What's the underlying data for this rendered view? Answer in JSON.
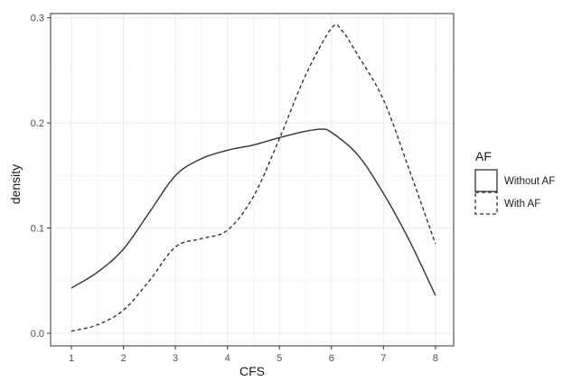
{
  "chart_data": {
    "type": "line",
    "xlabel": "CFS",
    "ylabel": "density",
    "xlim": [
      0.6,
      8.35
    ],
    "ylim": [
      -0.012,
      0.304
    ],
    "x_ticks": [
      1,
      2,
      3,
      4,
      5,
      6,
      7,
      8
    ],
    "y_ticks": [
      0.0,
      0.1,
      0.2,
      0.3
    ],
    "y_tick_labels": [
      "0.0",
      "0.1",
      "0.2",
      "0.3"
    ],
    "grid": true,
    "legend": {
      "title": "AF",
      "position": "right"
    },
    "series": [
      {
        "name": "Without AF",
        "linetype": "solid",
        "color": "#333333",
        "x": [
          1,
          1.5,
          2,
          2.5,
          3,
          3.5,
          4,
          4.5,
          5,
          5.5,
          5.8,
          6,
          6.5,
          7,
          7.5,
          8
        ],
        "y": [
          0.043,
          0.058,
          0.08,
          0.115,
          0.15,
          0.166,
          0.174,
          0.179,
          0.186,
          0.192,
          0.194,
          0.191,
          0.17,
          0.133,
          0.088,
          0.036
        ]
      },
      {
        "name": "With AF",
        "linetype": "dashed",
        "color": "#333333",
        "x": [
          1,
          1.5,
          2,
          2.5,
          3,
          3.5,
          4,
          4.5,
          5,
          5.5,
          6,
          6.2,
          6.5,
          7,
          7.5,
          8
        ],
        "y": [
          0.002,
          0.008,
          0.022,
          0.05,
          0.082,
          0.09,
          0.098,
          0.13,
          0.185,
          0.245,
          0.29,
          0.288,
          0.265,
          0.222,
          0.155,
          0.085
        ]
      }
    ]
  }
}
